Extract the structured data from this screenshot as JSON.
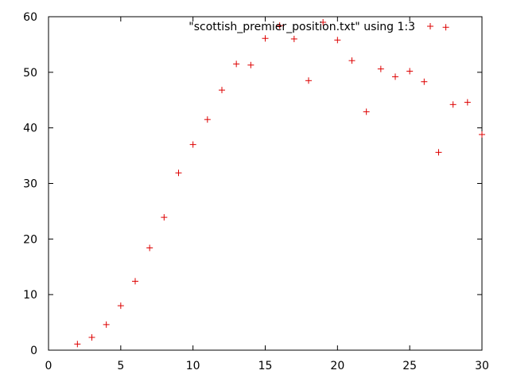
{
  "chart_data": {
    "type": "scatter",
    "title": "",
    "xlabel": "",
    "ylabel": "",
    "xlim": [
      0,
      30
    ],
    "ylim": [
      0,
      60
    ],
    "xticks": [
      0,
      5,
      10,
      15,
      20,
      25,
      30
    ],
    "yticks": [
      0,
      10,
      20,
      30,
      40,
      50,
      60
    ],
    "grid": false,
    "legend_position": "top-right",
    "series": [
      {
        "name": "\"scottish_premier_position.txt\" using 1:3",
        "color": "#dd0000",
        "marker": "plus",
        "x": [
          2,
          3,
          4,
          5,
          6,
          7,
          8,
          9,
          10,
          11,
          12,
          13,
          14,
          15,
          16,
          17,
          18,
          19,
          20,
          21,
          22,
          23,
          24,
          25,
          26,
          27,
          27.5,
          28,
          29,
          30
        ],
        "y": [
          1.1,
          2.3,
          4.6,
          8.0,
          12.4,
          18.4,
          23.9,
          31.9,
          37.0,
          41.5,
          46.8,
          51.5,
          51.3,
          56.1,
          58.4,
          56.0,
          48.5,
          59.0,
          55.8,
          52.1,
          42.9,
          50.6,
          49.2,
          50.2,
          48.3,
          35.6,
          58.1,
          44.2,
          44.6,
          38.8
        ]
      }
    ]
  }
}
